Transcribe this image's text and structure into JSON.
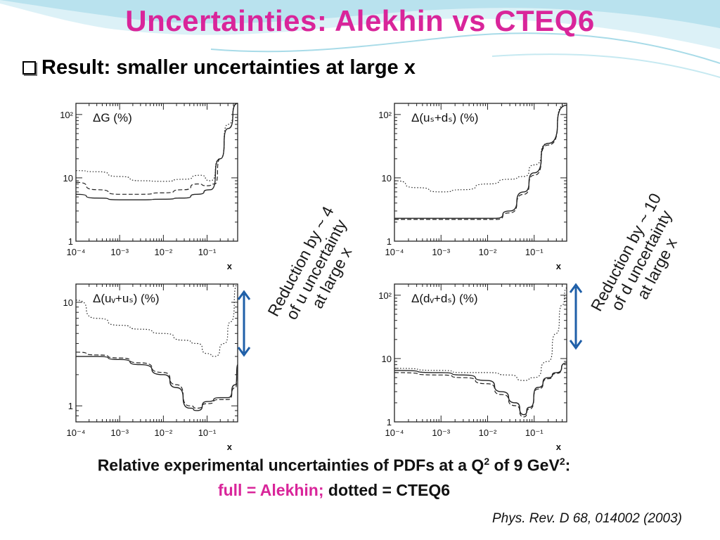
{
  "title": "Uncertainties: Alekhin vs CTEQ6",
  "bullet": "Result: smaller uncertainties at large x",
  "annotations": {
    "u_reduction": [
      "Reduction by ~ 4",
      "of u uncertainty",
      "at large x"
    ],
    "d_reduction": [
      "Reduction by ~ 10",
      "of d uncertainty",
      "at large x"
    ]
  },
  "caption": {
    "line1_a": "Relative experimental uncertainties of PDFs at a Q",
    "line1_sup1": "2",
    "line1_b": " of 9 GeV",
    "line1_sup2": "2",
    "line1_c": ":",
    "line2_full": "full = Alekhin;",
    "line2_dotted": " dotted = CTEQ6"
  },
  "reference": "Phys. Rev. D 68, 014002 (2003)",
  "colors": {
    "title": "#d9259a",
    "arrow": "#1f5fa8",
    "curve": "#222222"
  },
  "chart_data": [
    {
      "type": "line",
      "title": "ΔG (%)",
      "xlabel": "x",
      "xscale": "log",
      "yscale": "log",
      "xlim": [
        0.0001,
        0.5
      ],
      "ylim": [
        1,
        150
      ],
      "xticks": [
        "10⁻⁴",
        "10⁻³",
        "10⁻²",
        "10⁻¹"
      ],
      "yticks": [
        "1",
        "10",
        "10²"
      ],
      "series": [
        {
          "style": "solid",
          "points": [
            [
              0.0001,
              5.5
            ],
            [
              0.0003,
              4.8
            ],
            [
              0.001,
              4.5
            ],
            [
              0.003,
              4.5
            ],
            [
              0.01,
              4.6
            ],
            [
              0.03,
              4.8
            ],
            [
              0.06,
              5.5
            ],
            [
              0.12,
              6.5
            ],
            [
              0.2,
              20
            ],
            [
              0.3,
              60
            ],
            [
              0.5,
              150
            ]
          ]
        },
        {
          "style": "dashed",
          "points": [
            [
              0.0001,
              8.5
            ],
            [
              0.0003,
              6.5
            ],
            [
              0.001,
              5.5
            ],
            [
              0.003,
              5.5
            ],
            [
              0.01,
              5.8
            ],
            [
              0.03,
              6.5
            ],
            [
              0.06,
              8
            ],
            [
              0.1,
              7.5
            ],
            [
              0.15,
              8
            ],
            [
              0.2,
              20
            ],
            [
              0.3,
              60
            ],
            [
              0.5,
              160
            ]
          ]
        },
        {
          "style": "dotted",
          "points": [
            [
              0.0001,
              13
            ],
            [
              0.0003,
              12.5
            ],
            [
              0.001,
              10.5
            ],
            [
              0.003,
              9
            ],
            [
              0.01,
              8.8
            ],
            [
              0.03,
              9.5
            ],
            [
              0.07,
              11
            ],
            [
              0.12,
              9
            ],
            [
              0.2,
              20
            ],
            [
              0.3,
              70
            ],
            [
              0.5,
              200
            ]
          ]
        }
      ]
    },
    {
      "type": "line",
      "title": "Δ(uₛ+dₛ) (%)",
      "xlabel": "x",
      "xscale": "log",
      "yscale": "log",
      "xlim": [
        0.0001,
        0.5
      ],
      "ylim": [
        1,
        150
      ],
      "xticks": [
        "10⁻⁴",
        "10⁻³",
        "10⁻²",
        "10⁻¹"
      ],
      "yticks": [
        "1",
        "10",
        "10²"
      ],
      "series": [
        {
          "style": "solid",
          "points": [
            [
              0.0001,
              2.3
            ],
            [
              0.001,
              2.3
            ],
            [
              0.005,
              2.3
            ],
            [
              0.015,
              2.3
            ],
            [
              0.03,
              3
            ],
            [
              0.06,
              6
            ],
            [
              0.1,
              12
            ],
            [
              0.2,
              35
            ],
            [
              0.5,
              140
            ]
          ]
        },
        {
          "style": "dashed",
          "points": [
            [
              0.0001,
              2.2
            ],
            [
              0.001,
              2.2
            ],
            [
              0.005,
              2.2
            ],
            [
              0.015,
              2.2
            ],
            [
              0.03,
              2.8
            ],
            [
              0.06,
              5.5
            ],
            [
              0.1,
              11
            ],
            [
              0.2,
              33
            ],
            [
              0.5,
              140
            ]
          ]
        },
        {
          "style": "dotted",
          "points": [
            [
              0.0001,
              9
            ],
            [
              0.0003,
              7
            ],
            [
              0.001,
              6
            ],
            [
              0.003,
              6.5
            ],
            [
              0.01,
              8
            ],
            [
              0.03,
              9.5
            ],
            [
              0.06,
              10.5
            ],
            [
              0.1,
              16
            ],
            [
              0.2,
              35
            ],
            [
              0.5,
              160
            ]
          ]
        }
      ]
    },
    {
      "type": "line",
      "title": "Δ(uᵥ+uₛ) (%)",
      "xlabel": "x",
      "xscale": "log",
      "yscale": "log",
      "xlim": [
        0.0001,
        0.5
      ],
      "ylim": [
        0.7,
        15
      ],
      "xticks": [
        "10⁻⁴",
        "10⁻³",
        "10⁻²",
        "10⁻¹"
      ],
      "yticks": [
        "1",
        "10"
      ],
      "series": [
        {
          "style": "solid",
          "points": [
            [
              0.0001,
              3
            ],
            [
              0.0003,
              3
            ],
            [
              0.001,
              2.8
            ],
            [
              0.003,
              2.5
            ],
            [
              0.01,
              2
            ],
            [
              0.02,
              1.5
            ],
            [
              0.04,
              0.95
            ],
            [
              0.06,
              0.9
            ],
            [
              0.1,
              1.1
            ],
            [
              0.2,
              1.2
            ],
            [
              0.3,
              1.2
            ],
            [
              0.45,
              1.6
            ],
            [
              0.5,
              2.5
            ]
          ]
        },
        {
          "style": "dashed",
          "points": [
            [
              0.0001,
              3.3
            ],
            [
              0.0003,
              3.1
            ],
            [
              0.001,
              2.9
            ],
            [
              0.003,
              2.6
            ],
            [
              0.01,
              2.1
            ],
            [
              0.02,
              1.6
            ],
            [
              0.04,
              1
            ],
            [
              0.06,
              0.95
            ],
            [
              0.1,
              1.05
            ],
            [
              0.2,
              1.15
            ],
            [
              0.3,
              1.15
            ],
            [
              0.45,
              1.5
            ],
            [
              0.5,
              2.4
            ]
          ]
        },
        {
          "style": "dotted",
          "points": [
            [
              0.0001,
              10.5
            ],
            [
              0.0003,
              7
            ],
            [
              0.001,
              6
            ],
            [
              0.003,
              5.5
            ],
            [
              0.01,
              5
            ],
            [
              0.03,
              4.3
            ],
            [
              0.06,
              4
            ],
            [
              0.1,
              3.2
            ],
            [
              0.15,
              3
            ],
            [
              0.25,
              4
            ],
            [
              0.35,
              6.5
            ],
            [
              0.5,
              15
            ]
          ]
        }
      ]
    },
    {
      "type": "line",
      "title": "Δ(dᵥ+dₛ) (%)",
      "xlabel": "x",
      "xscale": "log",
      "yscale": "log",
      "xlim": [
        0.0001,
        0.5
      ],
      "ylim": [
        1,
        150
      ],
      "xticks": [
        "10⁻⁴",
        "10⁻³",
        "10⁻²",
        "10⁻¹"
      ],
      "yticks": [
        "1",
        "10",
        "10²"
      ],
      "series": [
        {
          "style": "solid",
          "points": [
            [
              0.0001,
              6.5
            ],
            [
              0.001,
              6
            ],
            [
              0.003,
              5.5
            ],
            [
              0.01,
              4.5
            ],
            [
              0.02,
              3
            ],
            [
              0.04,
              2
            ],
            [
              0.06,
              1.3
            ],
            [
              0.08,
              1.7
            ],
            [
              0.12,
              3.5
            ],
            [
              0.2,
              5
            ],
            [
              0.3,
              6
            ],
            [
              0.5,
              8.5
            ]
          ]
        },
        {
          "style": "dashed",
          "points": [
            [
              0.0001,
              6
            ],
            [
              0.001,
              5.5
            ],
            [
              0.003,
              5
            ],
            [
              0.01,
              4
            ],
            [
              0.02,
              2.7
            ],
            [
              0.04,
              1.8
            ],
            [
              0.06,
              1.2
            ],
            [
              0.08,
              1.6
            ],
            [
              0.12,
              3.3
            ],
            [
              0.2,
              4.8
            ],
            [
              0.3,
              5.8
            ],
            [
              0.5,
              8.5
            ]
          ]
        },
        {
          "style": "dotted",
          "points": [
            [
              0.0001,
              7
            ],
            [
              0.001,
              6.5
            ],
            [
              0.003,
              6
            ],
            [
              0.01,
              6
            ],
            [
              0.03,
              5.5
            ],
            [
              0.06,
              4.5
            ],
            [
              0.1,
              5
            ],
            [
              0.2,
              9
            ],
            [
              0.3,
              25
            ],
            [
              0.4,
              70
            ],
            [
              0.5,
              130
            ]
          ]
        }
      ]
    }
  ]
}
